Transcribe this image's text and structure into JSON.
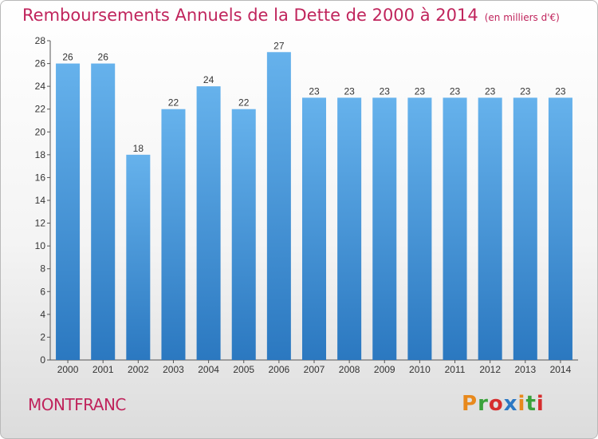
{
  "title": "Remboursements Annuels de la Dette de 2000 à 2014",
  "unit": "(en milliers d'€)",
  "commune": "MONTFRANC",
  "logo": {
    "text": "Proxiti",
    "colors": [
      "#e8891c",
      "#3aa23a",
      "#d62e2e",
      "#2b78c4",
      "#e8891c",
      "#3aa23a",
      "#d62e2e"
    ]
  },
  "chart_data": {
    "type": "bar",
    "title": "Remboursements Annuels de la Dette de 2000 à 2014",
    "xlabel": "",
    "ylabel": "",
    "categories": [
      "2000",
      "2001",
      "2002",
      "2003",
      "2004",
      "2005",
      "2006",
      "2007",
      "2008",
      "2009",
      "2010",
      "2011",
      "2012",
      "2013",
      "2014"
    ],
    "values": [
      26,
      26,
      18,
      22,
      24,
      22,
      27,
      23,
      23,
      23,
      23,
      23,
      23,
      23,
      23
    ],
    "ylim": [
      0,
      28
    ],
    "yticks": [
      0,
      2,
      4,
      6,
      8,
      10,
      12,
      14,
      16,
      18,
      20,
      22,
      24,
      26,
      28
    ],
    "grid": false,
    "bar_color": "#3f93d8"
  }
}
